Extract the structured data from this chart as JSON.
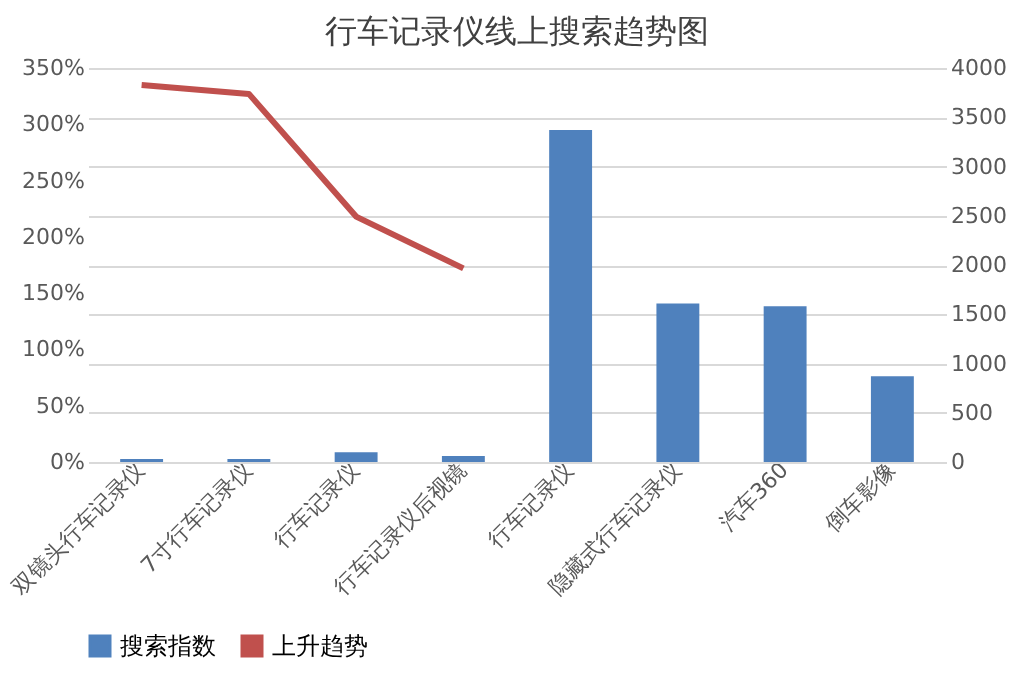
{
  "chart_data": {
    "type": "bar",
    "title": "行车记录仪线上搜索趋势图",
    "categories": [
      "双镜头行车记录仪",
      "7寸行车记录仪",
      "行车记录仪",
      "行车记录仪后视镜",
      "行车记录仪",
      "隐藏式行车记录仪",
      "汽车360",
      "倒车影像"
    ],
    "series": [
      {
        "name": "搜索指数",
        "axis": "y2",
        "color": "#4f81bd",
        "values": [
          30,
          30,
          100,
          60,
          3370,
          1610,
          1580,
          870
        ]
      },
      {
        "name": "上升趋势",
        "type": "line",
        "color": "#c0504d",
        "values": [
          335,
          327,
          218,
          172,
          null,
          null,
          null,
          null
        ]
      }
    ],
    "ylim": [
      0,
      350
    ],
    "yticks": [
      {
        "value": 0,
        "label": "0%"
      },
      {
        "value": 50,
        "label": "50%"
      },
      {
        "value": 100,
        "label": "100%"
      },
      {
        "value": 150,
        "label": "150%"
      },
      {
        "value": 200,
        "label": "200%"
      },
      {
        "value": 250,
        "label": "250%"
      },
      {
        "value": 300,
        "label": "300%"
      },
      {
        "value": 350,
        "label": "350%"
      }
    ],
    "y2lim": [
      0,
      4000
    ],
    "y2ticks": [
      0,
      500,
      1000,
      1500,
      2000,
      2500,
      3000,
      3500,
      4000
    ],
    "grid": "y",
    "legend": "bottom",
    "line_style": "solid",
    "marker": "none"
  }
}
